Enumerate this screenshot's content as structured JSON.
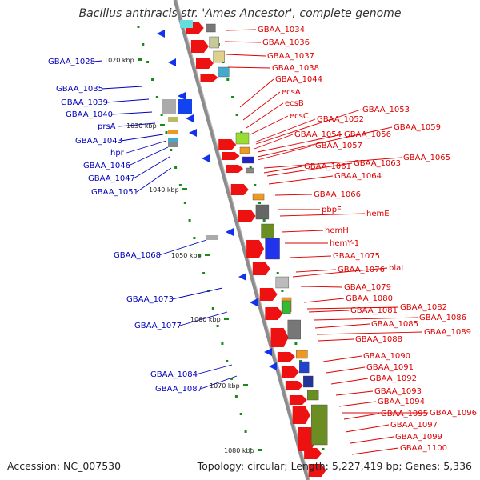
{
  "title": "Bacillus anthracis str. 'Ames Ancestor', complete genome",
  "footer": {
    "accession": "Accession: NC_007530",
    "topology": "Topology: circular; Length: 5,227,419 bp; Genes: 5,336"
  },
  "colors": {
    "backbone": "#8c8c8c",
    "forward_labels": "#dd0000",
    "reverse_labels": "#0000bb",
    "tick": "#1a8a1a"
  },
  "scale_labels": [
    "1020 kbp",
    "1030 kbp",
    "1040 kbp",
    "1050 kbp",
    "1060 kbp",
    "1070 kbp",
    "1080 kbp"
  ],
  "forward_labels": [
    "GBAA_1034",
    "GBAA_1036",
    "GBAA_1037",
    "GBAA_1038",
    "GBAA_1044",
    "ecsA",
    "ecsB",
    "ecsC",
    "GBAA_1053",
    "GBAA_1052",
    "GBAA_1059",
    "GBAA_1054",
    "GBAA_1056",
    "GBAA_1057",
    "GBAA_1065",
    "GBAA_1061",
    "GBAA_1063",
    "GBAA_1064",
    "GBAA_1066",
    "hemE",
    "pbpF",
    "hemH",
    "hemY-1",
    "GBAA_1075",
    "blaI",
    "GBAA_1076",
    "GBAA_1079",
    "GBAA_1080",
    "GBAA_1082",
    "GBAA_1081",
    "GBAA_1086",
    "GBAA_1085",
    "GBAA_1089",
    "GBAA_1088",
    "GBAA_1090",
    "GBAA_1091",
    "GBAA_1092",
    "GBAA_1093",
    "GBAA_1094",
    "GBAA_1096",
    "GBAA_1095",
    "GBAA_1097",
    "GBAA_1099",
    "GBAA_1100"
  ],
  "reverse_labels": [
    "GBAA_1028",
    "GBAA_1035",
    "GBAA_1039",
    "GBAA_1040",
    "prsA",
    "GBAA_1043",
    "hpr",
    "GBAA_1046",
    "GBAA_1047",
    "GBAA_1051",
    "GBAA_1068",
    "GBAA_1073",
    "GBAA_1077",
    "GBAA_1084",
    "GBAA_1087"
  ]
}
